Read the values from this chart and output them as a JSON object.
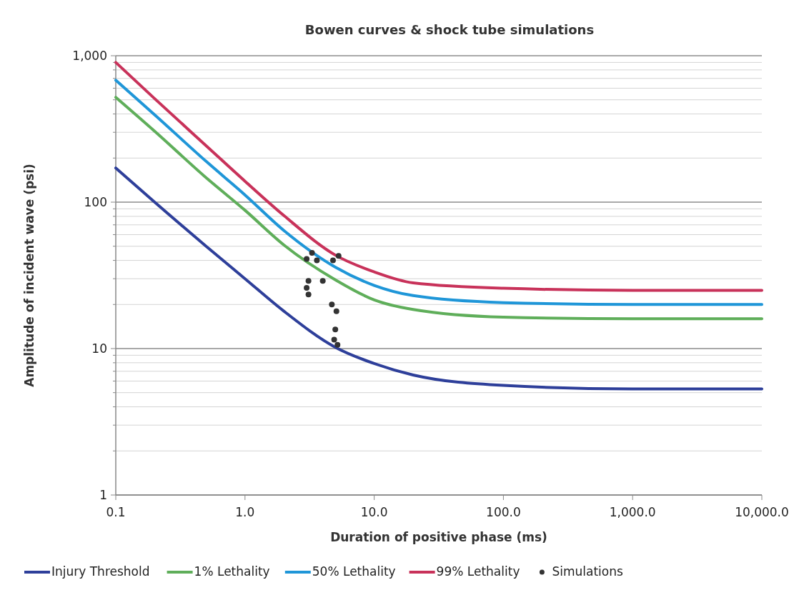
{
  "chart_data": {
    "type": "line",
    "title": "Bowen curves & shock tube simulations",
    "xlabel": "Duration of positive phase (ms)",
    "ylabel": "Amplitude of incident  wave (psi)",
    "log": "xy",
    "grid": "y",
    "legend": "bottom",
    "line_style": "solid",
    "marker": "none",
    "xlim": [
      0.1,
      10000
    ],
    "xticks": [
      {
        "value": 0.1,
        "label": "0.1"
      },
      {
        "value": 1,
        "label": "1.0"
      },
      {
        "value": 10,
        "label": "10.0"
      },
      {
        "value": 100,
        "label": "100.0"
      },
      {
        "value": 1000,
        "label": "1,000.0"
      },
      {
        "value": 10000,
        "label": "10,000.0"
      }
    ],
    "ylim": [
      1,
      1000
    ],
    "yticks": [
      1,
      {
        "value": 2,
        "label": null
      },
      {
        "value": 3,
        "label": null
      },
      {
        "value": 4,
        "label": null
      },
      {
        "value": 5,
        "label": null
      },
      {
        "value": 6,
        "label": null
      },
      {
        "value": 7,
        "label": null
      },
      {
        "value": 8,
        "label": null
      },
      {
        "value": 9,
        "label": null
      },
      10,
      {
        "value": 20,
        "label": null
      },
      {
        "value": 30,
        "label": null
      },
      {
        "value": 40,
        "label": null
      },
      {
        "value": 50,
        "label": null
      },
      {
        "value": 60,
        "label": null
      },
      {
        "value": 70,
        "label": null
      },
      {
        "value": 80,
        "label": null
      },
      {
        "value": 90,
        "label": null
      },
      100,
      {
        "value": 200,
        "label": null
      },
      {
        "value": 300,
        "label": null
      },
      {
        "value": 400,
        "label": null
      },
      {
        "value": 500,
        "label": null
      },
      {
        "value": 600,
        "label": null
      },
      {
        "value": 700,
        "label": null
      },
      {
        "value": 800,
        "label": null
      },
      {
        "value": 900,
        "label": null
      },
      {
        "value": 1000,
        "label": "1,000"
      }
    ],
    "series": [
      {
        "name": "Injury Threshold",
        "color": "#2e3f9a",
        "x": [
          0.1,
          0.2,
          0.5,
          1,
          2,
          5,
          10,
          20,
          100,
          1000,
          10000
        ],
        "values": [
          171,
          100,
          50,
          30,
          18,
          10.2,
          7.9,
          6.6,
          5.6,
          5.3,
          5.3
        ]
      },
      {
        "name": "1% Lethality",
        "color": "#5fae5a",
        "x": [
          0.1,
          0.2,
          0.5,
          1,
          2,
          5,
          10,
          20,
          100,
          1000,
          10000
        ],
        "values": [
          520,
          305,
          147,
          88,
          51,
          29.5,
          21.5,
          18.5,
          16.4,
          16,
          16
        ]
      },
      {
        "name": "50% Lethality",
        "color": "#1f96d8",
        "x": [
          0.1,
          0.2,
          0.5,
          1,
          2,
          5,
          10,
          20,
          100,
          1000,
          10000
        ],
        "values": [
          680,
          395,
          190,
          112,
          64,
          36,
          27,
          23,
          20.6,
          20,
          20
        ]
      },
      {
        "name": "99% Lethality",
        "color": "#c8325a",
        "x": [
          0.1,
          0.2,
          0.5,
          1,
          2,
          5,
          10,
          20,
          100,
          1000,
          10000
        ],
        "values": [
          900,
          509,
          243,
          139,
          81,
          43.5,
          33.4,
          28.1,
          25.8,
          25,
          25
        ]
      },
      {
        "name": "Simulations",
        "type": "scatter",
        "marker": "circle",
        "color": "#333333",
        "x": [
          3.0,
          3.3,
          3.6,
          4.8,
          5.3,
          3.1,
          3.0,
          4.0,
          3.1,
          4.7,
          5.1,
          5.0,
          4.9,
          5.2
        ],
        "values": [
          41,
          45,
          40,
          40,
          43,
          29,
          26,
          29,
          23.4,
          20,
          18,
          13.5,
          11.5,
          10.6
        ]
      }
    ]
  }
}
